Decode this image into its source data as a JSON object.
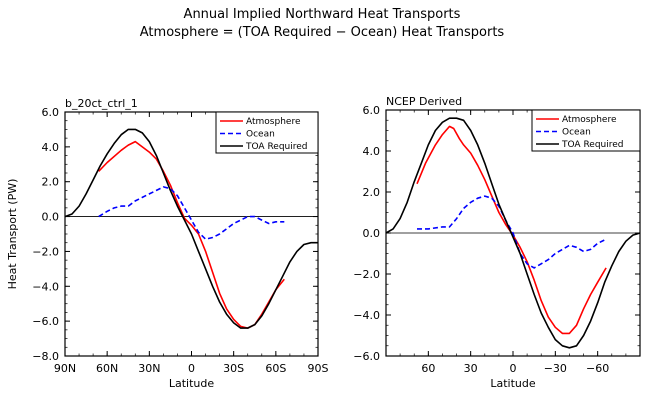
{
  "figure": {
    "title_line1": "Annual Implied Northward Heat Transports",
    "title_line2": "Atmosphere = (TOA Required − Ocean) Heat Transports"
  },
  "chart_data": [
    {
      "type": "line",
      "title": "b_20ct_ctrl_1",
      "xlabel": "Latitude",
      "ylabel": "Heat Transport (PW)",
      "xlim": [
        90,
        -90
      ],
      "ylim": [
        -8,
        6
      ],
      "xticks": [
        90,
        60,
        30,
        0,
        -30,
        -60,
        -90
      ],
      "xtick_labels": [
        "90N",
        "60N",
        "30N",
        "0",
        "30S",
        "60S",
        "90S"
      ],
      "yticks": [
        6,
        4,
        2,
        0,
        -2,
        -4,
        -6,
        -8
      ],
      "ytick_labels": [
        "6.0",
        "4.0",
        "2.0",
        "0.0",
        "−2.0",
        "−4.0",
        "−6.0",
        "−8.0"
      ],
      "legend": "top-right",
      "colors": {
        "Atmosphere": "#ff0000",
        "Ocean": "#0000ff",
        "TOA Required": "#000000"
      },
      "series": [
        {
          "name": "Atmosphere",
          "style": "solid",
          "x": [
            66,
            60,
            50,
            45,
            40,
            35,
            30,
            25,
            20,
            15,
            10,
            5,
            0,
            -5,
            -10,
            -15,
            -20,
            -25,
            -30,
            -35,
            -40,
            -45,
            -50,
            -55,
            -60,
            -66
          ],
          "y": [
            2.6,
            3.1,
            3.8,
            4.1,
            4.3,
            4.0,
            3.7,
            3.3,
            2.6,
            1.8,
            0.8,
            -0.1,
            -0.5,
            -1.0,
            -2.0,
            -3.2,
            -4.4,
            -5.3,
            -5.9,
            -6.3,
            -6.4,
            -6.2,
            -5.6,
            -4.9,
            -4.2,
            -3.6
          ]
        },
        {
          "name": "Ocean",
          "style": "dashed",
          "x": [
            66,
            60,
            55,
            50,
            45,
            40,
            35,
            30,
            25,
            20,
            15,
            10,
            5,
            0,
            -5,
            -10,
            -15,
            -20,
            -25,
            -30,
            -35,
            -40,
            -45,
            -50,
            -55,
            -60,
            -66
          ],
          "y": [
            0.0,
            0.3,
            0.5,
            0.6,
            0.6,
            0.9,
            1.1,
            1.3,
            1.5,
            1.7,
            1.6,
            1.2,
            0.5,
            -0.2,
            -0.9,
            -1.3,
            -1.2,
            -1.0,
            -0.7,
            -0.4,
            -0.2,
            0.0,
            0.0,
            -0.2,
            -0.4,
            -0.3,
            -0.3
          ]
        },
        {
          "name": "TOA Required",
          "style": "solid",
          "x": [
            90,
            85,
            80,
            75,
            70,
            65,
            60,
            55,
            50,
            45,
            40,
            35,
            30,
            25,
            20,
            15,
            10,
            5,
            0,
            -5,
            -10,
            -15,
            -20,
            -25,
            -30,
            -35,
            -40,
            -45,
            -50,
            -55,
            -60,
            -65,
            -70,
            -75,
            -80,
            -85,
            -90
          ],
          "y": [
            0.0,
            0.15,
            0.6,
            1.3,
            2.1,
            2.9,
            3.6,
            4.2,
            4.7,
            5.0,
            5.0,
            4.8,
            4.3,
            3.5,
            2.5,
            1.5,
            0.6,
            -0.2,
            -1.0,
            -2.0,
            -3.0,
            -4.0,
            -4.9,
            -5.6,
            -6.1,
            -6.4,
            -6.4,
            -6.2,
            -5.7,
            -5.0,
            -4.2,
            -3.4,
            -2.6,
            -2.0,
            -1.6,
            -1.5,
            -1.5
          ]
        }
      ]
    },
    {
      "type": "line",
      "title": "NCEP Derived",
      "xlabel": "Latitude",
      "ylabel": "",
      "xlim": [
        90,
        -90
      ],
      "ylim": [
        -6,
        6
      ],
      "xticks": [
        60,
        30,
        0,
        -30,
        -60
      ],
      "xtick_labels": [
        "60",
        "30",
        "0",
        "−30",
        "−60"
      ],
      "yticks": [
        6,
        4,
        2,
        0,
        -2,
        -4,
        -6
      ],
      "ytick_labels": [
        "6.0",
        "4.0",
        "2.0",
        "0.0",
        "−2.0",
        "−4.0",
        "−6.0"
      ],
      "legend": "top-right",
      "colors": {
        "Atmosphere": "#ff0000",
        "Ocean": "#0000ff",
        "TOA Required": "#000000"
      },
      "series": [
        {
          "name": "Atmosphere",
          "style": "solid",
          "x": [
            68,
            62,
            55,
            50,
            45,
            42,
            38,
            35,
            30,
            25,
            20,
            15,
            10,
            5,
            0,
            -5,
            -10,
            -15,
            -20,
            -25,
            -30,
            -35,
            -40,
            -45,
            -50,
            -55,
            -60,
            -66
          ],
          "y": [
            2.4,
            3.4,
            4.3,
            4.8,
            5.2,
            5.1,
            4.6,
            4.3,
            3.9,
            3.3,
            2.6,
            1.8,
            1.0,
            0.4,
            -0.1,
            -0.7,
            -1.4,
            -2.3,
            -3.3,
            -4.1,
            -4.6,
            -4.9,
            -4.9,
            -4.5,
            -3.7,
            -3.0,
            -2.4,
            -1.7
          ]
        },
        {
          "name": "Ocean",
          "style": "dashed",
          "x": [
            68,
            60,
            50,
            45,
            40,
            35,
            30,
            25,
            20,
            15,
            10,
            5,
            0,
            -5,
            -10,
            -15,
            -20,
            -25,
            -30,
            -35,
            -40,
            -45,
            -50,
            -55,
            -60,
            -66
          ],
          "y": [
            0.2,
            0.2,
            0.3,
            0.3,
            0.7,
            1.2,
            1.5,
            1.7,
            1.8,
            1.7,
            1.3,
            0.6,
            0.0,
            -1.0,
            -1.5,
            -1.7,
            -1.5,
            -1.3,
            -1.0,
            -0.8,
            -0.6,
            -0.7,
            -0.9,
            -0.8,
            -0.5,
            -0.3
          ]
        },
        {
          "name": "TOA Required",
          "style": "solid",
          "x": [
            90,
            85,
            80,
            75,
            70,
            65,
            60,
            55,
            50,
            45,
            40,
            35,
            30,
            25,
            20,
            15,
            10,
            5,
            0,
            -5,
            -10,
            -15,
            -20,
            -25,
            -30,
            -35,
            -40,
            -45,
            -50,
            -55,
            -60,
            -65,
            -70,
            -75,
            -80,
            -85,
            -90
          ],
          "y": [
            0.0,
            0.2,
            0.7,
            1.5,
            2.5,
            3.4,
            4.3,
            5.0,
            5.4,
            5.6,
            5.6,
            5.5,
            5.0,
            4.3,
            3.4,
            2.4,
            1.4,
            0.6,
            -0.2,
            -1.0,
            -2.0,
            -3.0,
            -3.9,
            -4.6,
            -5.2,
            -5.5,
            -5.6,
            -5.5,
            -5.0,
            -4.3,
            -3.4,
            -2.4,
            -1.6,
            -0.9,
            -0.4,
            -0.1,
            0.0
          ]
        }
      ]
    }
  ]
}
